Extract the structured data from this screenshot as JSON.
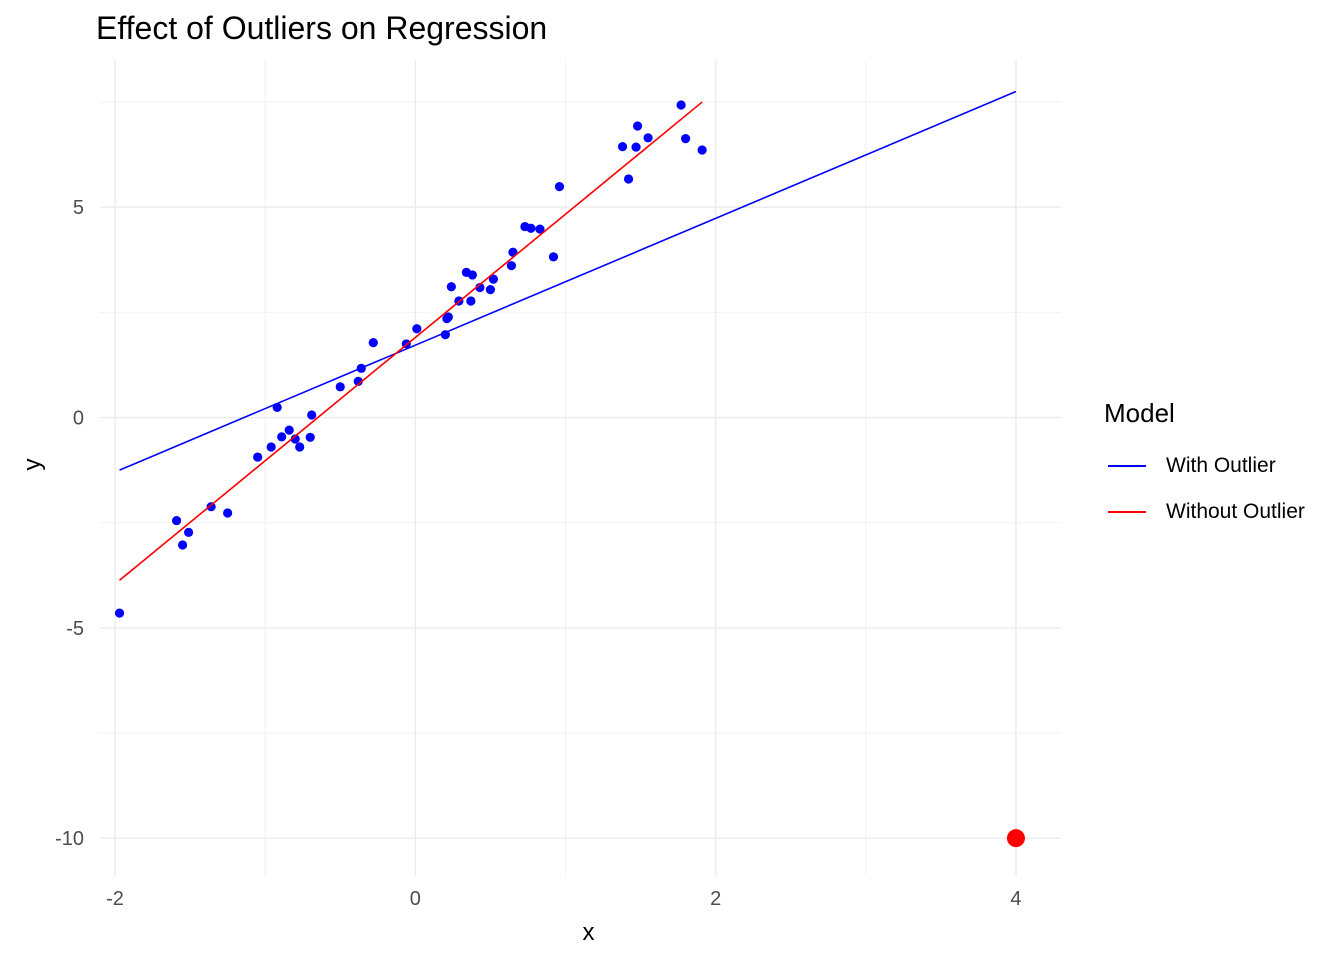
{
  "chart_data": {
    "type": "scatter",
    "title": "Effect of Outliers on Regression",
    "xlabel": "x",
    "ylabel": "y",
    "xlim": [
      -2.1,
      4.3
    ],
    "ylim": [
      -10.9,
      8.5
    ],
    "x_ticks": [
      -2,
      0,
      2,
      4
    ],
    "y_ticks": [
      -10,
      -5,
      0,
      5
    ],
    "x_tick_labels": [
      "-2",
      "0",
      "2",
      "4"
    ],
    "y_tick_labels": [
      "-10",
      "-5",
      "0",
      "5"
    ],
    "grid": true,
    "legend_position": "right",
    "legend_title": "Model",
    "points": {
      "color": "#0000ff",
      "x": [
        -1.97,
        -1.59,
        -1.55,
        -1.51,
        -1.36,
        -1.25,
        -1.05,
        -0.96,
        -0.92,
        -0.89,
        -0.84,
        -0.8,
        -0.77,
        -0.7,
        -0.69,
        -0.5,
        -0.38,
        -0.36,
        -0.28,
        -0.06,
        0.01,
        0.2,
        0.21,
        0.22,
        0.24,
        0.29,
        0.34,
        0.37,
        0.38,
        0.43,
        0.5,
        0.52,
        0.64,
        0.65,
        0.73,
        0.77,
        0.83,
        0.92,
        0.96,
        1.38,
        1.42,
        1.47,
        1.48,
        1.55,
        1.77,
        1.8,
        1.91
      ],
      "y": [
        -4.65,
        -2.45,
        -3.03,
        -2.73,
        -2.12,
        -2.27,
        -0.94,
        -0.7,
        0.24,
        -0.46,
        -0.3,
        -0.51,
        -0.7,
        -0.47,
        0.06,
        0.73,
        0.86,
        1.17,
        1.78,
        1.75,
        2.11,
        1.97,
        2.35,
        2.39,
        3.11,
        2.77,
        3.45,
        2.77,
        3.39,
        3.09,
        3.04,
        3.29,
        3.61,
        3.93,
        4.54,
        4.5,
        4.48,
        3.82,
        5.49,
        6.44,
        5.67,
        6.43,
        6.93,
        6.65,
        7.43,
        6.63,
        6.36
      ]
    },
    "outlier": {
      "x": 4.0,
      "y": -10.0,
      "color": "#ff0000"
    },
    "series": [
      {
        "name": "With Outlier",
        "color": "#0000ff",
        "x": [
          -1.97,
          4.0
        ],
        "y": [
          -1.25,
          7.75
        ]
      },
      {
        "name": "Without Outlier",
        "color": "#ff0000",
        "x": [
          -1.97,
          1.91
        ],
        "y": [
          -3.87,
          7.5
        ]
      }
    ]
  }
}
